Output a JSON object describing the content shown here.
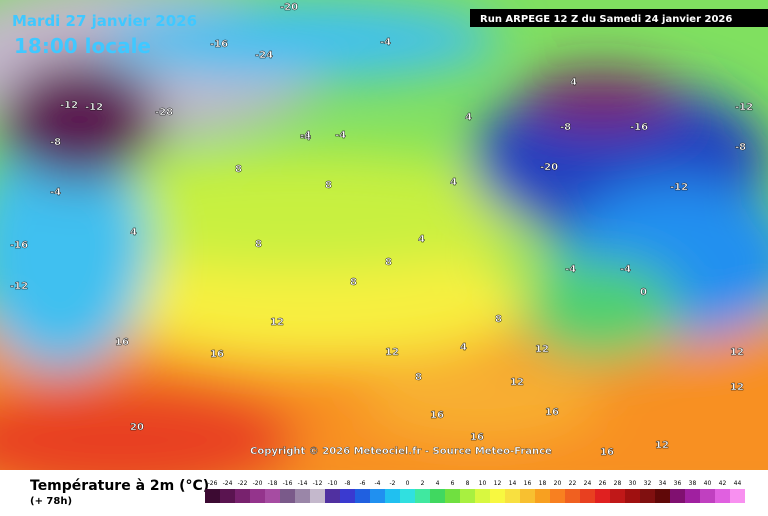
{
  "header": {
    "date": "Mardi 27 janvier 2026",
    "time": "18:00 locale",
    "run": "Run ARPEGE 12 Z du Samedi 24 janvier 2026"
  },
  "copyright": "Copyright © 2026 Meteociel.fr - Source Meteo-France",
  "legend": {
    "title": "Température à 2m (°C)",
    "lead": "(+ 78h)",
    "values": [
      -26,
      -24,
      -22,
      -20,
      -18,
      -16,
      -14,
      -12,
      -10,
      -8,
      -6,
      -4,
      -2,
      0,
      2,
      4,
      6,
      8,
      10,
      12,
      14,
      16,
      18,
      20,
      22,
      24,
      26,
      28,
      30,
      32,
      34,
      36,
      38,
      40,
      42,
      44
    ],
    "colors": [
      "#3c0a32",
      "#5a1450",
      "#78226e",
      "#94348c",
      "#a64ca2",
      "#7a5a8a",
      "#9a86a8",
      "#c4b8cc",
      "#5030a0",
      "#3a3ad0",
      "#2060e0",
      "#2090f0",
      "#20c0f0",
      "#30e0e0",
      "#40e8a0",
      "#40d860",
      "#70e040",
      "#a8f040",
      "#d8f840",
      "#f8f840",
      "#f8e040",
      "#f8c030",
      "#f8a020",
      "#f88020",
      "#f06020",
      "#e84020",
      "#e02020",
      "#c01818",
      "#a01010",
      "#801010",
      "#600808",
      "#801070",
      "#a020a0",
      "#c040c0",
      "#e060e0",
      "#f890f0"
    ]
  },
  "map_labels": [
    "-20",
    "-16",
    "-24",
    "-28",
    "-12",
    "-8",
    "-4",
    "-12",
    "-16",
    "-4",
    "-4",
    "-20",
    "-12",
    "-8",
    "-4",
    "4",
    "4",
    "-16",
    "-12",
    "-4",
    "4",
    "8",
    "8",
    "4",
    "4",
    "8",
    "8",
    "8",
    "8",
    "12",
    "12",
    "16",
    "16",
    "20",
    "12",
    "16",
    "16",
    "16",
    "12",
    "12",
    "-4",
    "-4",
    "0",
    "-8",
    "-12",
    "4",
    "8",
    "12",
    "16",
    "12"
  ]
}
